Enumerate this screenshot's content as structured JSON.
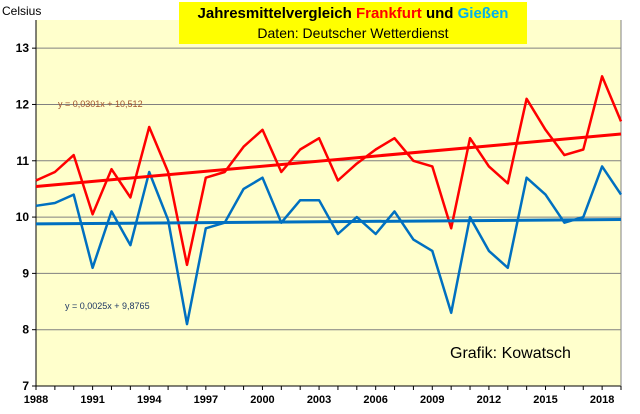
{
  "chart_data": {
    "type": "line",
    "title": {
      "part1": "Jahresmittelvergleich",
      "part2": "Frankfurt",
      "part3": "und",
      "part4": "Gießen",
      "subtitle": "Daten: Deutscher Wetterdienst"
    },
    "ylabel": "Celsius",
    "ylim": [
      7,
      13.5
    ],
    "yticks": [
      "7",
      "8",
      "9",
      "10",
      "11",
      "12",
      "13"
    ],
    "xlim": [
      1988,
      2019
    ],
    "xticks": [
      "1988",
      "1991",
      "1994",
      "1997",
      "2000",
      "2003",
      "2006",
      "2009",
      "2012",
      "2015",
      "2018"
    ],
    "x": [
      1988,
      1989,
      1990,
      1991,
      1992,
      1993,
      1994,
      1995,
      1996,
      1997,
      1998,
      1999,
      2000,
      2001,
      2002,
      2003,
      2004,
      2005,
      2006,
      2007,
      2008,
      2009,
      2010,
      2011,
      2012,
      2013,
      2014,
      2015,
      2016,
      2017,
      2018,
      2019
    ],
    "series": [
      {
        "color": "#ff0000",
        "values": [
          10.65,
          10.8,
          11.1,
          10.05,
          10.85,
          10.35,
          11.6,
          10.8,
          9.15,
          10.7,
          10.8,
          11.25,
          11.55,
          10.8,
          11.2,
          11.4,
          10.65,
          10.95,
          11.2,
          11.4,
          11.0,
          10.9,
          9.8,
          11.4,
          10.9,
          10.6,
          12.1,
          11.55,
          11.1,
          11.2,
          12.5,
          11.7
        ]
      },
      {
        "color": "#0070c0",
        "values": [
          10.2,
          10.25,
          10.4,
          9.1,
          10.1,
          9.5,
          10.8,
          9.95,
          8.1,
          9.8,
          9.9,
          10.5,
          10.7,
          9.9,
          10.3,
          10.3,
          9.7,
          10.0,
          9.7,
          10.1,
          9.6,
          9.4,
          8.3,
          10.0,
          9.4,
          9.1,
          10.7,
          10.4,
          9.9,
          10.0,
          10.9,
          10.4
        ]
      }
    ],
    "trendlines": [
      {
        "color": "#ff0000",
        "slope": 0.0301,
        "intercept": 10.512,
        "label": "y = 0,0301x + 10,512",
        "label_color": "#a0522d"
      },
      {
        "color": "#0070c0",
        "slope": 0.0025,
        "intercept": 9.8765,
        "label": "y = 0,0025x + 9,8765",
        "label_color": "#1f3864"
      }
    ],
    "annotation": "Grafik: Kowatsch",
    "plot_background": "#ffffcc",
    "grid": true,
    "title_background": "#ffff00",
    "title_colors": {
      "part1": "#000000",
      "part2": "#ff0000",
      "part3": "#000000",
      "part4": "#00b0f0"
    }
  }
}
